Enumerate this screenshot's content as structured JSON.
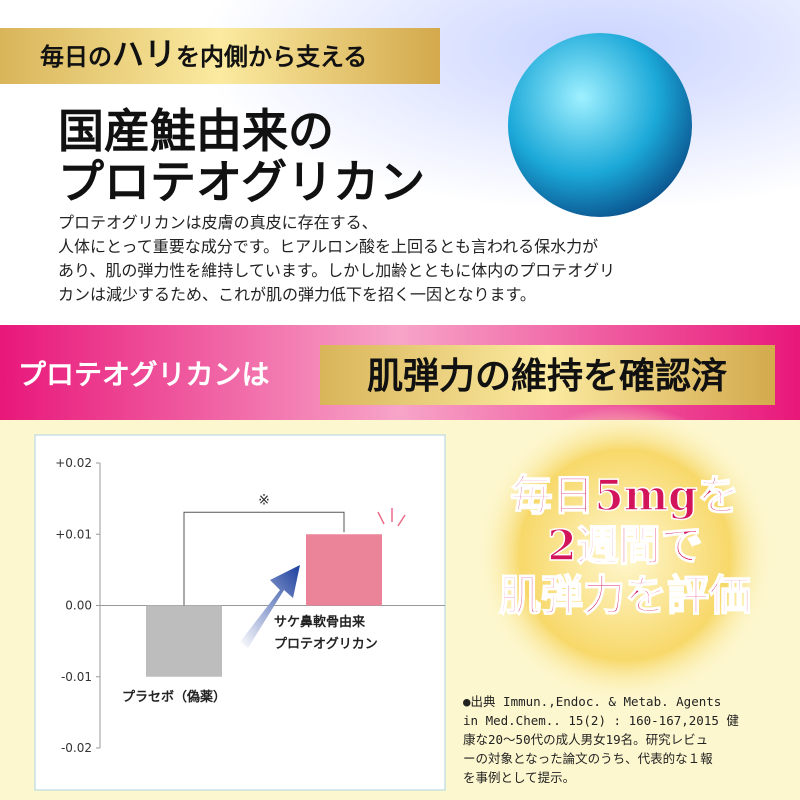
{
  "header": {
    "tagline": [
      "毎日の",
      "ハリ",
      "を内側から支える"
    ],
    "title": [
      "国産鮭由来の",
      "プロテオグリカン"
    ],
    "description": [
      "プロテオグリカンは皮膚の真皮に存在する、",
      "人体にとって重要な成分です。ヒアルロン酸を上回るとも言われる保水力が",
      "あり、肌の弾力性を維持しています。しかし加齢とともに体内のプロテオグリ",
      "カンは減少するため、これが肌の弾力低下を招く一因となります。"
    ]
  },
  "banner": {
    "left": "プロテオグリカンは",
    "right": "肌弾力の維持を確認済"
  },
  "badge": [
    "毎日5mgを",
    "2週間で",
    "肌弾力を評価"
  ],
  "citation": [
    "●出典 Immun.,Endoc. & Metab. Agents",
    "in Med.Chem.. 15(2) : 160-167,2015 健",
    "康な20～50代の成人男女19名。研究レビュ",
    "ーの対象となった論文のうち、代表的な１報",
    "を事例として提示。"
  ],
  "chart_data": {
    "type": "bar",
    "categories": [
      "プラセボ（偽薬）",
      "サケ鼻軟骨由来\nプロテオグリカン"
    ],
    "values": [
      -0.01,
      0.01
    ],
    "colors": [
      "#bdbdbd",
      "#ec8499"
    ],
    "ylim": [
      -0.02,
      0.02
    ],
    "yticks": [
      {
        "value": 0.02,
        "label": "+0.02"
      },
      {
        "value": 0.01,
        "label": "+0.01"
      },
      {
        "value": 0,
        "label": "0.00"
      },
      {
        "value": -0.01,
        "label": "-0.01"
      },
      {
        "value": -0.02,
        "label": "-0.02"
      }
    ],
    "annotation": "※"
  }
}
